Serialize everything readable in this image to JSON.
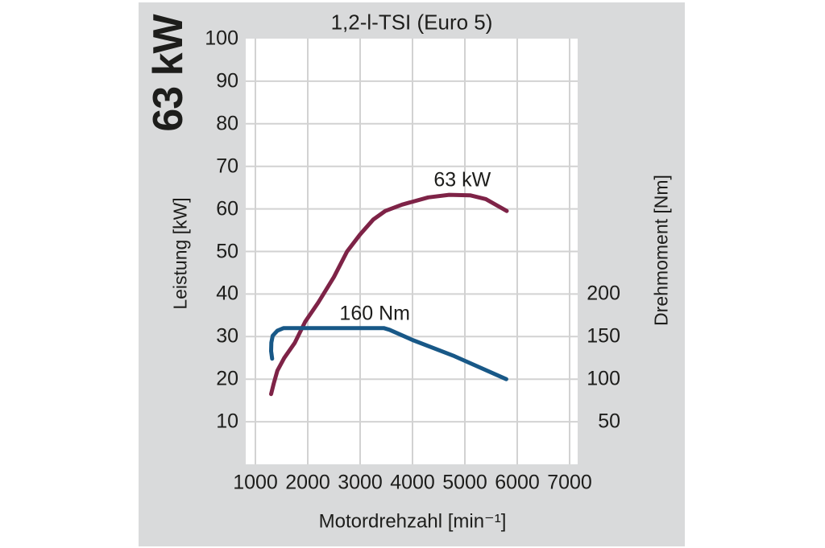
{
  "page": {
    "side_label": "63 kW"
  },
  "chart_data": {
    "type": "line",
    "title": "1,2-l-TSI (Euro 5)",
    "grid": true,
    "x_axis": {
      "label": "Motordrehzahl [min⁻¹]",
      "ticks": [
        1000,
        2000,
        3000,
        4000,
        5000,
        6000,
        7000
      ],
      "range": [
        815,
        7150
      ]
    },
    "y_axis_left": {
      "label": "Leistung [kW]",
      "ticks": [
        100,
        90,
        80,
        70,
        60,
        50,
        40,
        30,
        20,
        10
      ],
      "range": [
        0,
        100
      ]
    },
    "y_axis_right": {
      "label": "Drehmoment [Nm]",
      "ticks": [
        200,
        150,
        100,
        50
      ],
      "range": [
        0,
        500
      ]
    },
    "series": [
      {
        "name": "Leistung",
        "display_label": "63 kW",
        "axis": "left",
        "unit": "kW",
        "color": "#7e2347",
        "label_anchor": {
          "rpm": 4950,
          "value": 66.7
        },
        "points": [
          [
            1300,
            16.5
          ],
          [
            1350,
            19
          ],
          [
            1420,
            22
          ],
          [
            1550,
            25
          ],
          [
            1750,
            28.5
          ],
          [
            1950,
            33.5
          ],
          [
            2200,
            38
          ],
          [
            2500,
            44
          ],
          [
            2750,
            50
          ],
          [
            3000,
            54
          ],
          [
            3250,
            57.5
          ],
          [
            3480,
            59.5
          ],
          [
            3800,
            61
          ],
          [
            4300,
            62.7
          ],
          [
            4700,
            63.3
          ],
          [
            5100,
            63.2
          ],
          [
            5400,
            62.3
          ],
          [
            5800,
            59.5
          ]
        ]
      },
      {
        "name": "Drehmoment",
        "display_label": "160 Nm",
        "axis": "right",
        "unit": "Nm",
        "color": "#185887",
        "label_anchor": {
          "rpm": 3280,
          "value": 176.5
        },
        "points": [
          [
            1320,
            124
          ],
          [
            1300,
            133
          ],
          [
            1305,
            143
          ],
          [
            1330,
            151
          ],
          [
            1420,
            157
          ],
          [
            1540,
            160
          ],
          [
            3450,
            160
          ],
          [
            3560,
            158
          ],
          [
            4000,
            146
          ],
          [
            4800,
            127
          ],
          [
            5790,
            100
          ]
        ]
      }
    ]
  },
  "colors": {
    "panel_background": "#d9dadb",
    "plot_background": "#ffffff",
    "gridline": "#d2d2d2",
    "text": "#1d1d1b",
    "power_curve": "#7e2347",
    "torque_curve": "#185887"
  }
}
